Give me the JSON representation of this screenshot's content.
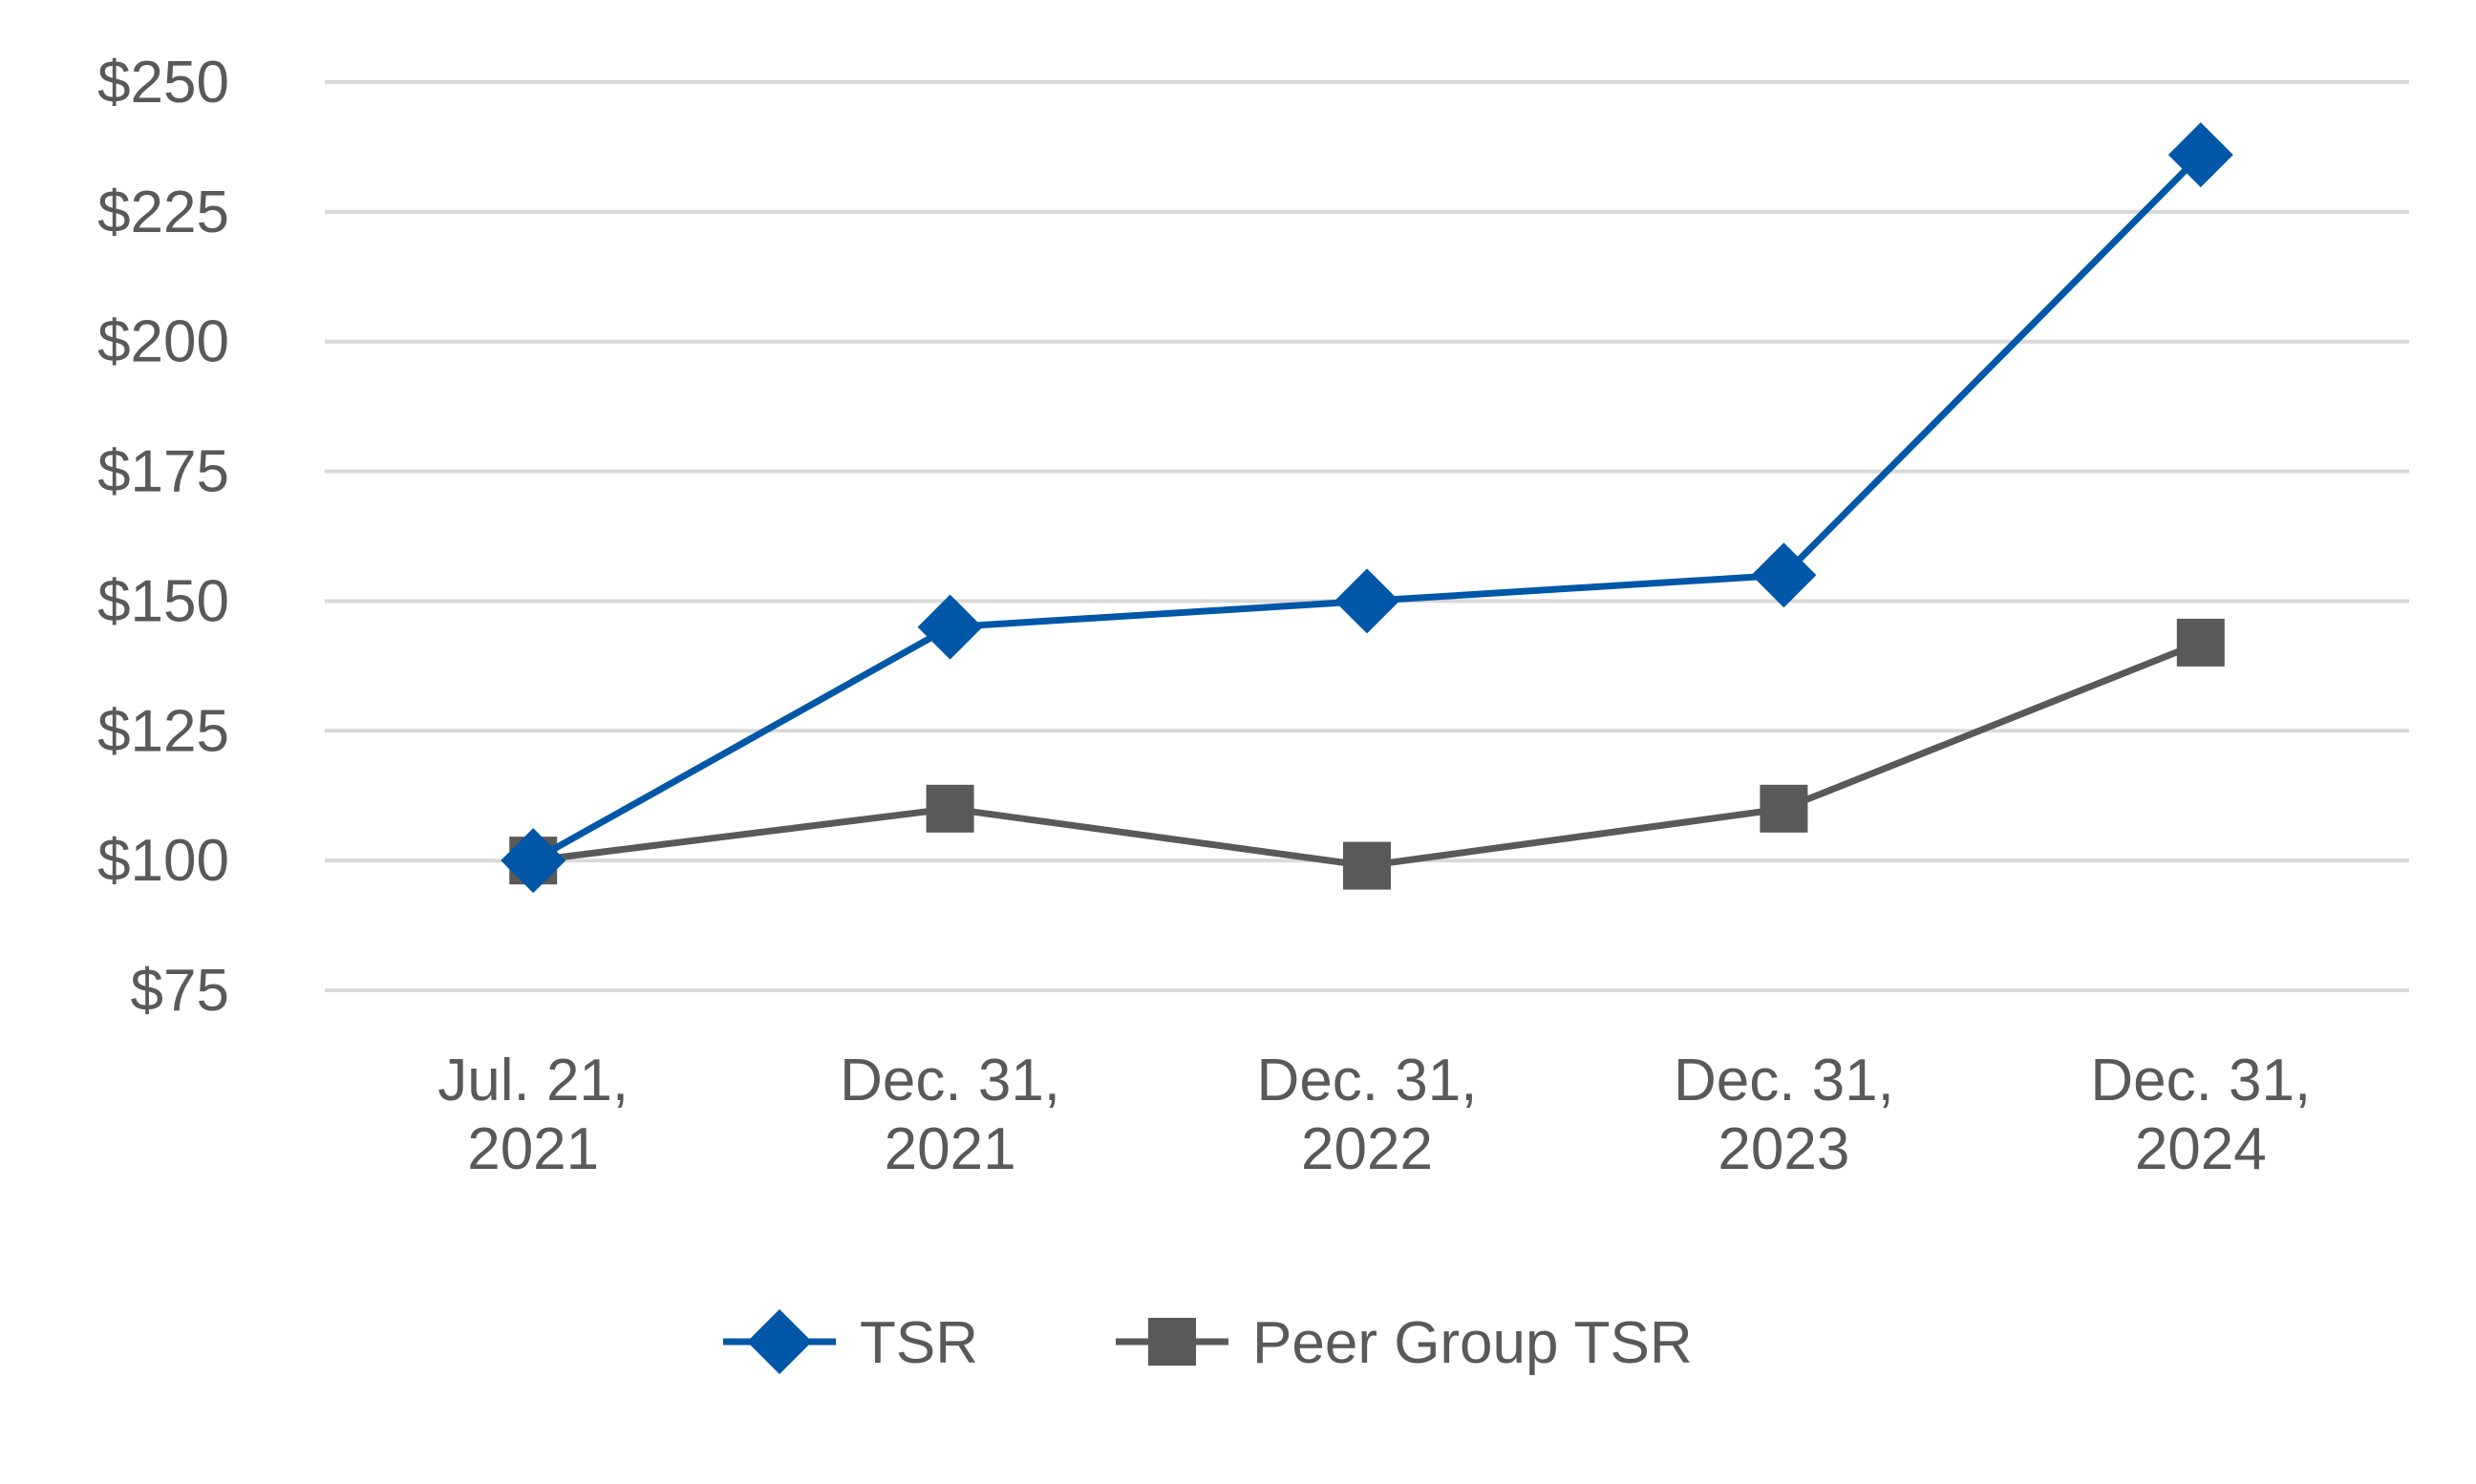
{
  "chart_data": {
    "type": "line",
    "title": "",
    "xlabel": "",
    "ylabel": "",
    "categories": [
      [
        "Jul. 21,",
        "2021"
      ],
      [
        "Dec. 31,",
        "2021"
      ],
      [
        "Dec. 31,",
        "2022"
      ],
      [
        "Dec. 31,",
        "2023"
      ],
      [
        "Dec. 31,",
        "2024"
      ]
    ],
    "ylim": [
      75,
      250
    ],
    "yticks": [
      75,
      100,
      125,
      150,
      175,
      200,
      225,
      250
    ],
    "ytick_labels": [
      "$75",
      "$100",
      "$125",
      "$150",
      "$175",
      "$200",
      "$225",
      "$250"
    ],
    "grid": true,
    "legend_position": "bottom",
    "series": [
      {
        "name": "TSR",
        "values": [
          100,
          145,
          150,
          155,
          236
        ],
        "color": "#0057a8",
        "marker": "diamond"
      },
      {
        "name": "Peer Group TSR",
        "values": [
          100,
          110,
          99,
          110,
          142
        ],
        "color": "#595959",
        "marker": "square"
      }
    ]
  }
}
